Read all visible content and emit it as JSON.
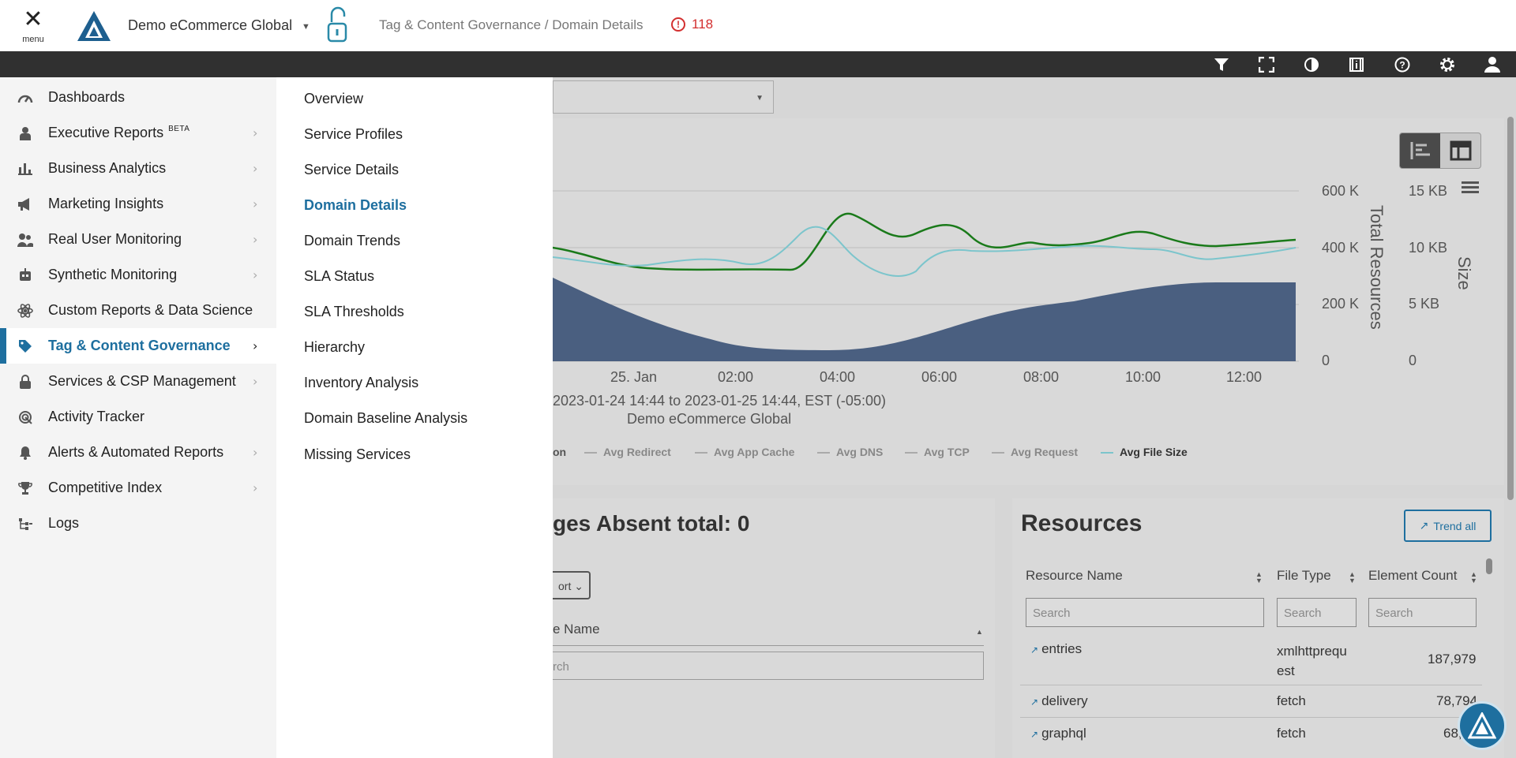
{
  "header": {
    "menu_label": "menu",
    "site_name": "Demo eCommerce Global",
    "breadcrumb": "Tag & Content Governance / Domain Details",
    "alert_count": "118"
  },
  "toolbar": {
    "icons": [
      "filter-icon",
      "fullscreen-icon",
      "contrast-icon",
      "info-icon",
      "help-icon",
      "settings-icon",
      "user-icon"
    ]
  },
  "sidenav": {
    "items": [
      {
        "label": "Dashboards",
        "icon": "dashboard-icon",
        "has_children": false
      },
      {
        "label": "Executive Reports",
        "badge": "BETA",
        "icon": "executive-icon",
        "has_children": true
      },
      {
        "label": "Business Analytics",
        "icon": "bar-chart-icon",
        "has_children": true
      },
      {
        "label": "Marketing Insights",
        "icon": "megaphone-icon",
        "has_children": true
      },
      {
        "label": "Real User Monitoring",
        "icon": "users-icon",
        "has_children": true
      },
      {
        "label": "Synthetic Monitoring",
        "icon": "robot-icon",
        "has_children": true
      },
      {
        "label": "Custom Reports & Data Science",
        "icon": "atom-icon",
        "has_children": false
      },
      {
        "label": "Tag & Content Governance",
        "icon": "tag-icon",
        "has_children": true,
        "active": true
      },
      {
        "label": "Services & CSP Management",
        "icon": "lock-icon",
        "has_children": true
      },
      {
        "label": "Activity Tracker",
        "icon": "tracker-icon",
        "has_children": false
      },
      {
        "label": "Alerts & Automated Reports",
        "icon": "bell-icon",
        "has_children": true
      },
      {
        "label": "Competitive Index",
        "icon": "trophy-icon",
        "has_children": true
      },
      {
        "label": "Logs",
        "icon": "logs-icon",
        "has_children": false
      }
    ]
  },
  "submenu": {
    "items": [
      "Overview",
      "Service Profiles",
      "Service Details",
      "Domain Details",
      "Domain Trends",
      "SLA Status",
      "SLA Thresholds",
      "Hierarchy",
      "Inventory Analysis",
      "Domain Baseline Analysis",
      "Missing Services"
    ],
    "active_index": 3
  },
  "chart": {
    "y_ticks_left": [
      "600 K",
      "400 K",
      "200 K",
      "0"
    ],
    "y_ticks_right": [
      "15 KB",
      "10 KB",
      "5 KB",
      "0"
    ],
    "y_title_left": "Total Resources",
    "y_title_right": "Size",
    "x_ticks": [
      "25. Jan",
      "02:00",
      "04:00",
      "06:00",
      "08:00",
      "10:00",
      "12:00"
    ],
    "subtitle_range": "2023-01-24 14:44 to 2023-01-25 14:44, EST (-05:00)",
    "subtitle_site": "Demo eCommerce Global",
    "legend": [
      "on",
      "Avg Redirect",
      "Avg App Cache",
      "Avg DNS",
      "Avg TCP",
      "Avg Request",
      "Avg File Size"
    ]
  },
  "pages": {
    "title": "ges Absent total: 0",
    "export_label": "ort",
    "col_name": "e Name",
    "search_placeholder": "rch"
  },
  "resources": {
    "title": "Resources",
    "trend_all": "Trend all",
    "columns": [
      "Resource Name",
      "File Type",
      "Element Count"
    ],
    "search_placeholder": "Search",
    "rows": [
      {
        "name": "entries",
        "type": "xmlhttprequ est",
        "type_l1": "xmlhttprequ",
        "type_l2": "est",
        "count": "187,979"
      },
      {
        "name": "delivery",
        "type": "fetch",
        "count": "78,794"
      },
      {
        "name": "graphql",
        "type": "fetch",
        "count": "68,5"
      }
    ]
  },
  "colors": {
    "accent": "#1e6f9f",
    "toolbar_bg": "#303030",
    "alert": "#d32f2f",
    "area_fill": "#4a5f80",
    "line_green": "#1a7a1a",
    "line_teal": "#7cc5cc"
  }
}
